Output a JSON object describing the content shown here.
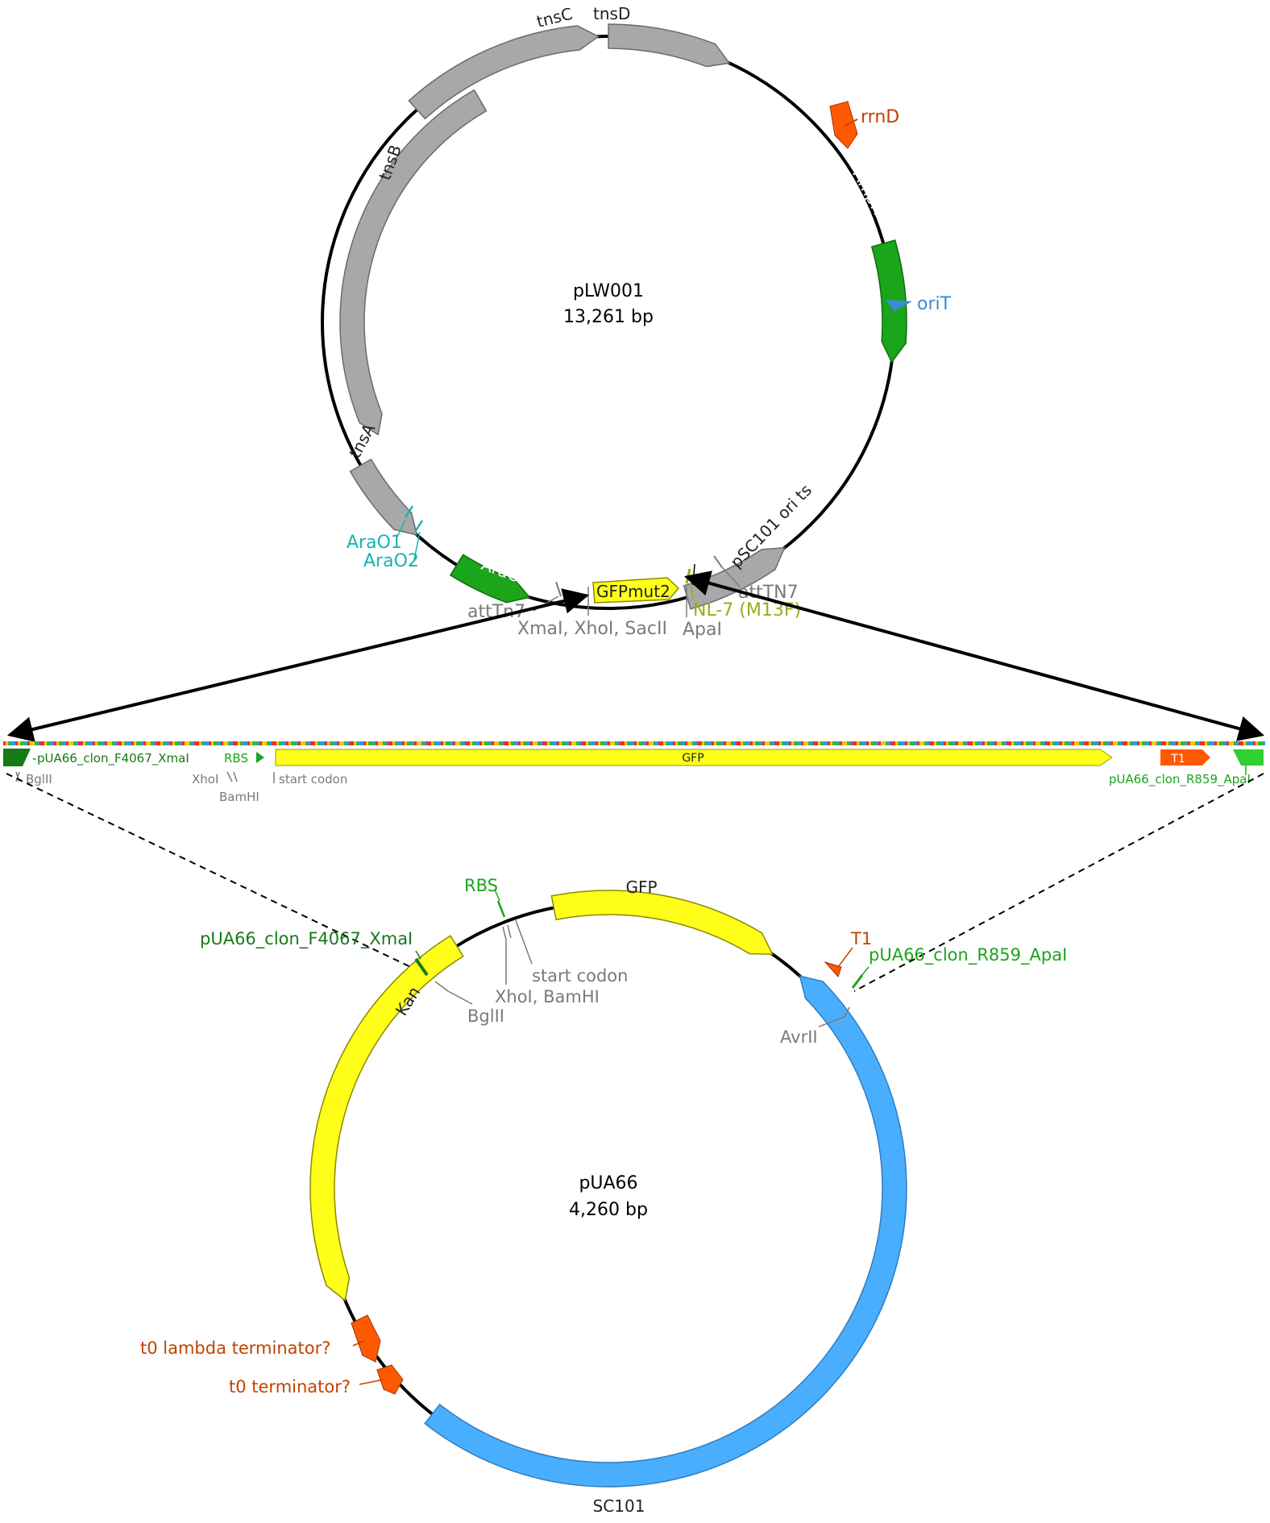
{
  "colors": {
    "gray_feature": "#a8a8a8",
    "gray_text": "#7a7a7a",
    "green_feature": "#1aa51a",
    "dark_green": "#167a16",
    "light_green": "#2fd12f",
    "yellow_feature": "#ffff1a",
    "orange_feature": "#ff5a00",
    "terminator_text": "#c34200",
    "blue_feature": "#4aaeff",
    "teal_text": "#19b3b3",
    "blue_text": "#3b8cd1",
    "olive_text": "#8fb01b",
    "backbone": "#000000"
  },
  "plasmid_top": {
    "name": "pLW001",
    "size": "13,261 bp",
    "features": {
      "tnsC": "tnsC",
      "tnsD": "tnsD",
      "tnsB": "tnsB",
      "tnsA": "tnsA",
      "rrnD": "rrnD",
      "AmpR": "AmpR",
      "oriT": "oriT",
      "pSC101": "pSC101 ori ts",
      "AraC": "AraC",
      "AraO1": "AraO1",
      "AraO2": "AraO2",
      "GFPmut2": "GFPmut2",
      "attTn7_left": "attTn7",
      "attTN7_right": "attTN7",
      "sites_left": "XmaI, XhoI, SacII",
      "ApaI": "ApaI",
      "NL7": "NL-7 (M13F)"
    }
  },
  "linear_map": {
    "labels": {
      "primer_fwd": "pUA66_clon_F4067_XmaI",
      "rbs": "RBS",
      "gfp": "GFP",
      "t1": "T1",
      "primer_rev": "pUA66_clon_R859_ApaI",
      "bglII": "BglII",
      "xhoI": "XhoI",
      "bamHI": "BamHI",
      "start_codon": "start codon"
    }
  },
  "plasmid_bottom": {
    "name": "pUA66",
    "size": "4,260 bp",
    "features": {
      "RBS": "RBS",
      "GFP": "GFP",
      "T1": "T1",
      "primer_rev": "pUA66_clon_R859_ApaI",
      "primer_fwd": "pUA66_clon_F4067_XmaI",
      "start_codon": "start codon",
      "xhoI_bamHI": "XhoI, BamHI",
      "bglII": "BglII",
      "avrII": "AvrII",
      "kan": "Kan",
      "t0_lambda": "t0 lambda terminator?",
      "t0": "t0 terminator?",
      "SC101": "SC101"
    }
  }
}
